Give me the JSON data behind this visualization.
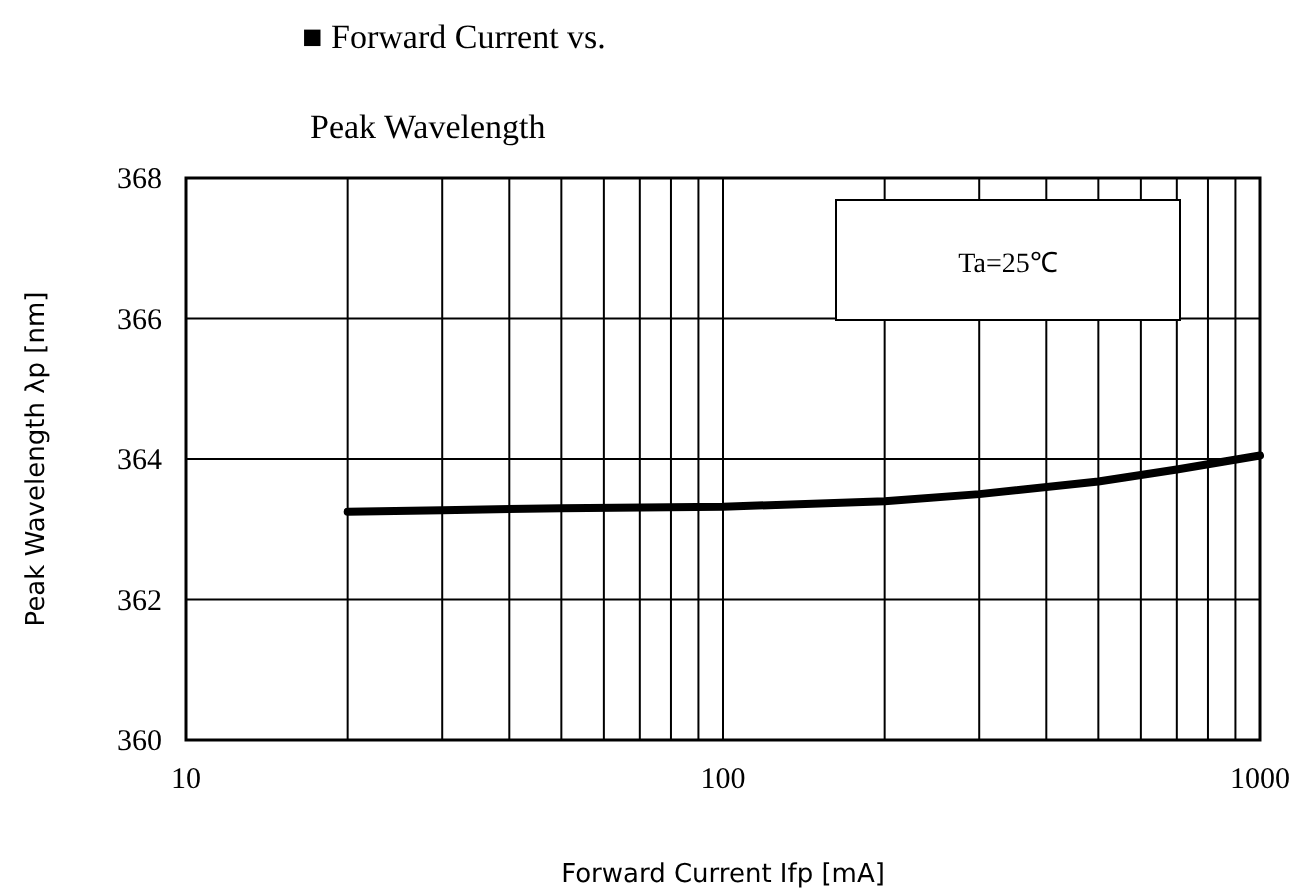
{
  "chart_data": {
    "type": "line",
    "title": "■ Forward Current vs.",
    "subtitle": "Peak Wavelength",
    "xlabel": "Forward Current Ifp [mA]",
    "ylabel": "Peak Wavelength λp [nm]",
    "annotations": [
      "Ta=25℃"
    ],
    "log": "x",
    "grid": true,
    "marker": "none",
    "line_style": "solid",
    "xlim": [
      10,
      1000
    ],
    "ylim": [
      360,
      368
    ],
    "xticks": [
      10,
      {
        "value": 20,
        "label": null
      },
      {
        "value": 30,
        "label": null
      },
      {
        "value": 40,
        "label": null
      },
      {
        "value": 50,
        "label": null
      },
      {
        "value": 60,
        "label": null
      },
      {
        "value": 70,
        "label": null
      },
      {
        "value": 80,
        "label": null
      },
      {
        "value": 90,
        "label": null
      },
      100,
      {
        "value": 200,
        "label": null
      },
      {
        "value": 300,
        "label": null
      },
      {
        "value": 400,
        "label": null
      },
      {
        "value": 500,
        "label": null
      },
      {
        "value": 600,
        "label": null
      },
      {
        "value": 700,
        "label": null
      },
      {
        "value": 800,
        "label": null
      },
      {
        "value": 900,
        "label": null
      },
      1000
    ],
    "yticks": [
      360,
      362,
      364,
      366,
      368
    ],
    "x": [
      20,
      30,
      50,
      100,
      200,
      300,
      500,
      700,
      1000
    ],
    "series": [
      {
        "color": "#000000",
        "values": [
          363.25,
          363.27,
          363.3,
          363.32,
          363.4,
          363.5,
          363.68,
          363.85,
          364.05
        ]
      }
    ]
  }
}
